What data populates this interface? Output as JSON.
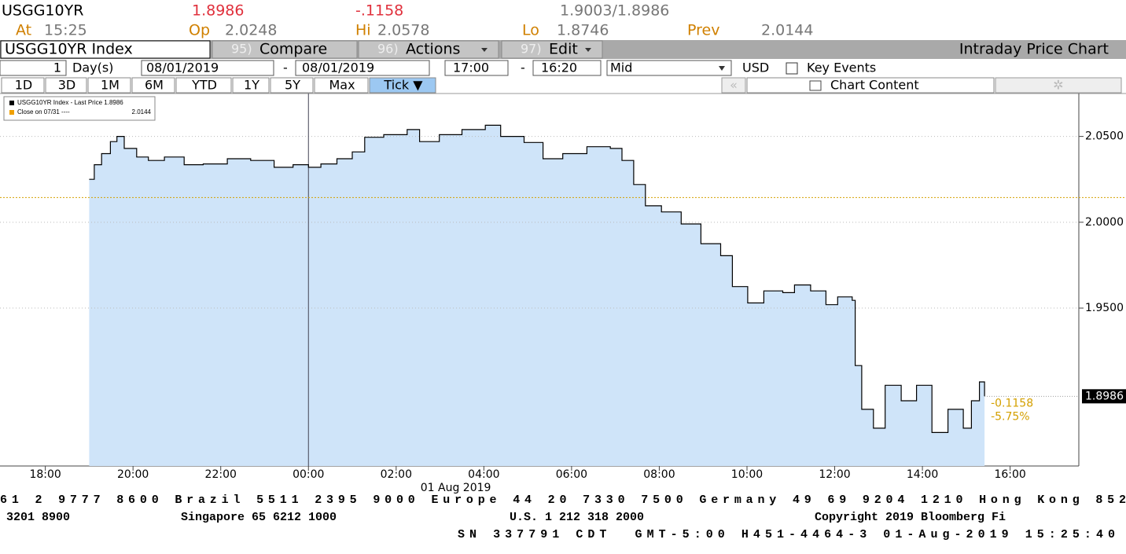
{
  "header": {
    "ticker": "USGG10YR",
    "last": "1.8986",
    "change": "-.1158",
    "bid_ask": "1.9003/1.8986",
    "fields": [
      {
        "label": "At",
        "value": "15:25"
      },
      {
        "label": "Op",
        "value": "2.0248"
      },
      {
        "label": "Hi",
        "value": "2.0578"
      },
      {
        "label": "Lo",
        "value": "1.8746"
      },
      {
        "label": "Prev",
        "value": "2.0144"
      }
    ]
  },
  "toolbar": {
    "security": "USGG10YR Index",
    "menus": [
      {
        "key": "95)",
        "label": "Compare"
      },
      {
        "key": "96)",
        "label": "Actions"
      },
      {
        "key": "97)",
        "label": "Edit"
      }
    ],
    "title": "Intraday Price Chart",
    "range": {
      "count": "1",
      "unit": "Day(s)",
      "from_date": "08/01/2019",
      "dash1": "-",
      "to_date": "08/01/2019",
      "from_time": "17:00",
      "dash2": "-",
      "to_time": "16:20",
      "mode": "Mid",
      "currency": "USD",
      "key_events": "Key Events"
    },
    "periods": [
      "1D",
      "3D",
      "1M",
      "6M",
      "YTD",
      "1Y",
      "5Y",
      "Max",
      "Tick ▼"
    ],
    "chart_content": "Chart Content"
  },
  "chart_data": {
    "type": "line",
    "color": "#000000",
    "fill": "#cfe4f9",
    "legend": [
      {
        "name": "USGG10YR Index - Last Price 1.8986",
        "color": "#000000"
      },
      {
        "name": "Close on 07/31 ----",
        "value": "2.0144",
        "color": "#f0a000"
      }
    ],
    "x": [
      "19:00",
      "19:07",
      "19:17",
      "19:29",
      "19:38",
      "19:48",
      "20:05",
      "20:21",
      "20:43",
      "21:10",
      "21:36",
      "22:09",
      "22:41",
      "23:13",
      "23:39",
      "00:00",
      "00:17",
      "00:39",
      "01:00",
      "01:17",
      "01:43",
      "02:15",
      "02:32",
      "02:59",
      "03:30",
      "04:02",
      "04:23",
      "04:55",
      "05:21",
      "05:48",
      "06:21",
      "06:53",
      "07:09",
      "07:25",
      "07:41",
      "08:03",
      "08:30",
      "08:57",
      "09:24",
      "09:40",
      "10:01",
      "10:23",
      "10:49",
      "11:05",
      "11:27",
      "11:48",
      "12:04",
      "12:24",
      "12:28",
      "12:37",
      "12:53",
      "13:09",
      "13:31",
      "13:52",
      "14:13",
      "14:35",
      "14:56",
      "15:07",
      "15:18",
      "15:25"
    ],
    "values": [
      2.025,
      2.0335,
      2.04,
      2.047,
      2.05,
      2.043,
      2.038,
      2.036,
      2.038,
      2.0335,
      2.034,
      2.037,
      2.036,
      2.032,
      2.0335,
      2.032,
      2.034,
      2.037,
      2.041,
      2.0495,
      2.051,
      2.054,
      2.047,
      2.051,
      2.054,
      2.0565,
      2.05,
      2.0465,
      2.037,
      2.04,
      2.044,
      2.043,
      2.036,
      2.022,
      2.0096,
      2.006,
      1.999,
      1.9875,
      1.9805,
      1.9625,
      1.953,
      1.96,
      1.959,
      1.9635,
      1.96,
      1.952,
      1.9565,
      1.9545,
      1.9165,
      1.891,
      1.88,
      1.905,
      1.896,
      1.905,
      1.8775,
      1.891,
      1.88,
      1.896,
      1.907,
      1.8986
    ],
    "xlim": [
      "16:58",
      "17:34"
    ],
    "xticks": [
      "18:00",
      "20:00",
      "22:00",
      "00:00",
      "02:00",
      "04:00",
      "06:00",
      "08:00",
      "10:00",
      "12:00",
      "14:00",
      "16:00"
    ],
    "date_label": "01 Aug 2019",
    "date_marker": "00:00",
    "ylim": [
      1.858,
      2.075
    ],
    "yticks": [
      {
        "value": 1.95,
        "label": "1.9500"
      },
      {
        "value": 2.0,
        "label": "2.0000"
      },
      {
        "value": 2.05,
        "label": "2.0500"
      }
    ],
    "grid": true,
    "reference": {
      "value": 2.0144,
      "color": "#d4a000"
    },
    "last_label": "1.8986",
    "annotations": [
      "-0.1158",
      "-5.75%"
    ]
  },
  "footer": {
    "line1": "61 2 9777 8600 Brazil 5511 2395 9000 Europe 44 20 7330 7500 Germany 49 69 9204 1210 Hong Kong 852",
    "line2": [
      "3201 8900",
      "Singapore 65 6212 1000",
      "U.S. 1 212 318 2000",
      "Copyright 2019 Bloomberg Fi"
    ],
    "line3": "SN 337791 CDT  GMT-5:00 H451-4464-3 01-Aug-2019 15:25:40"
  }
}
